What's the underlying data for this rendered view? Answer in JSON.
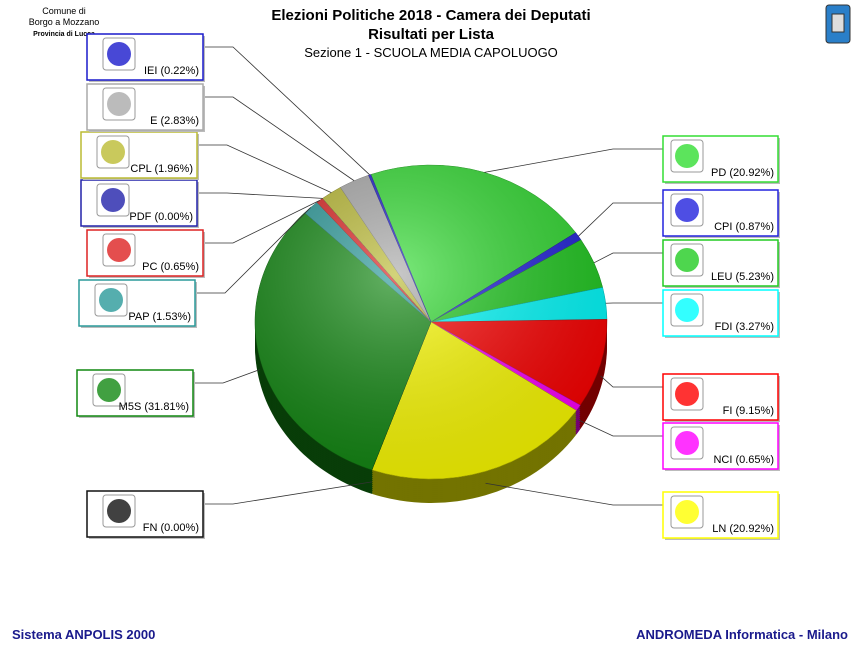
{
  "header": {
    "municipality": [
      "Comune di",
      "Borgo a Mozzano",
      "Provincia di Lucca"
    ]
  },
  "chart_data": {
    "type": "pie",
    "title": "Elezioni Politiche 2018 - Camera dei Deputati",
    "subtitle": "Risultati per Lista",
    "caption": "Sezione 1 - SCUOLA MEDIA CAPOLUOGO",
    "categories": [
      "PD",
      "CPI",
      "LEU",
      "FDI",
      "FI",
      "NCI",
      "LN",
      "FN",
      "M5S",
      "PAP",
      "PC",
      "PDF",
      "CPL",
      "E",
      "IEI"
    ],
    "values": [
      20.92,
      0.87,
      5.23,
      3.27,
      9.15,
      0.65,
      20.92,
      0.0,
      31.81,
      1.53,
      0.65,
      0.0,
      1.96,
      2.83,
      0.22
    ],
    "value_labels": [
      "(20.92%)",
      "(0.87%)",
      "(5.23%)",
      "(3.27%)",
      "(9.15%)",
      "(0.65%)",
      "(20.92%)",
      "(0.00%)",
      "(31.81%)",
      "(1.53%)",
      "(0.65%)",
      "(0.00%)",
      "(1.96%)",
      "(2.83%)",
      "(0.22%)"
    ],
    "colors": [
      "#33dd33",
      "#2222dd",
      "#22cc22",
      "#00ffff",
      "#ff0000",
      "#ff00ff",
      "#ffff00",
      "#111111",
      "#118811",
      "#2a9a9a",
      "#dd2222",
      "#2222aa",
      "#bbbb33",
      "#aaaaaa",
      "#1a1acc"
    ]
  },
  "footer": {
    "left": "Sistema ANPOLIS 2000",
    "right": "ANDROMEDA Informatica - Milano"
  }
}
